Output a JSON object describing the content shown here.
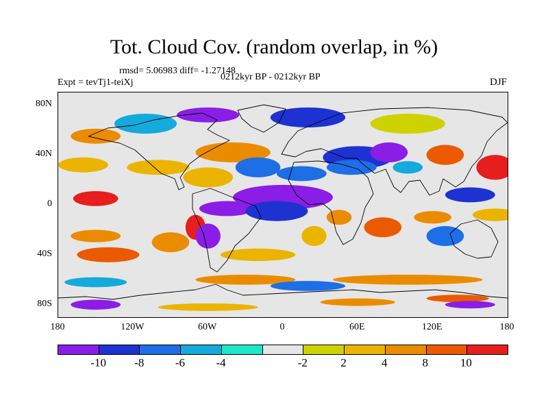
{
  "title": "Tot. Cloud Cov. (random overlap, in %)",
  "stats": "rmsd= 5.06983 diff= -1.27148",
  "experiment": "Expt = tevTj1-teiXj",
  "period": "0212kyr BP - 0212kyr BP",
  "season": "DJF",
  "map": {
    "projection": "cylindrical-equidistant",
    "lon_range": [
      -180,
      180
    ],
    "lat_range": [
      -90,
      90
    ],
    "x_ticks": [
      {
        "lon": -180,
        "label": "180"
      },
      {
        "lon": -120,
        "label": "120W"
      },
      {
        "lon": -60,
        "label": "60W"
      },
      {
        "lon": 0,
        "label": "0"
      },
      {
        "lon": 60,
        "label": "60E"
      },
      {
        "lon": 120,
        "label": "120E"
      },
      {
        "lon": 180,
        "label": "180"
      }
    ],
    "y_ticks": [
      {
        "lat": 80,
        "label": "80N"
      },
      {
        "lat": 40,
        "label": "40N"
      },
      {
        "lat": 0,
        "label": "0"
      },
      {
        "lat": -40,
        "label": "40S"
      },
      {
        "lat": -80,
        "label": "80S"
      }
    ],
    "background_color": "#e6e6e6",
    "coastline_color": "#000000",
    "anomaly_regions": [
      {
        "lon": -150,
        "lat": 5,
        "rlon": 18,
        "rlat": 6,
        "bin": 10
      },
      {
        "lon": -45,
        "lat": -3,
        "rlon": 22,
        "rlat": 6,
        "bin": 0
      },
      {
        "lon": 0,
        "lat": 6,
        "rlon": 40,
        "rlat": 10,
        "bin": 0
      },
      {
        "lon": -5,
        "lat": -5,
        "rlon": 25,
        "rlat": 8,
        "bin": 1
      },
      {
        "lon": -60,
        "lat": 22,
        "rlon": 20,
        "rlat": 8,
        "bin": 7
      },
      {
        "lon": -100,
        "lat": 30,
        "rlon": 25,
        "rlat": 6,
        "bin": 7
      },
      {
        "lon": -40,
        "lat": 42,
        "rlon": 30,
        "rlat": 8,
        "bin": 8
      },
      {
        "lon": -160,
        "lat": 32,
        "rlon": 20,
        "rlat": 6,
        "bin": 7
      },
      {
        "lon": -165,
        "lat": 16,
        "rlon": 15,
        "rlat": 6,
        "bin": 5
      },
      {
        "lon": -20,
        "lat": 30,
        "rlon": 18,
        "rlat": 8,
        "bin": 2
      },
      {
        "lon": 15,
        "lat": 25,
        "rlon": 20,
        "rlat": 6,
        "bin": 2
      },
      {
        "lon": 60,
        "lat": 38,
        "rlon": 28,
        "rlat": 9,
        "bin": 1
      },
      {
        "lon": 85,
        "lat": 42,
        "rlon": 15,
        "rlat": 8,
        "bin": 0
      },
      {
        "lon": 55,
        "lat": 30,
        "rlon": 20,
        "rlat": 6,
        "bin": 2
      },
      {
        "lon": 100,
        "lat": 30,
        "rlon": 12,
        "rlat": 5,
        "bin": 3
      },
      {
        "lon": 130,
        "lat": 40,
        "rlon": 15,
        "rlat": 8,
        "bin": 9
      },
      {
        "lon": 170,
        "lat": 30,
        "rlon": 15,
        "rlat": 10,
        "bin": 10
      },
      {
        "lon": 150,
        "lat": 8,
        "rlon": 20,
        "rlat": 6,
        "bin": 1
      },
      {
        "lon": 170,
        "lat": -8,
        "rlon": 18,
        "rlat": 5,
        "bin": 7
      },
      {
        "lon": 120,
        "lat": -10,
        "rlon": 15,
        "rlat": 5,
        "bin": 8
      },
      {
        "lon": 130,
        "lat": -25,
        "rlon": 15,
        "rlat": 8,
        "bin": 2
      },
      {
        "lon": 80,
        "lat": -18,
        "rlon": 15,
        "rlat": 8,
        "bin": 9
      },
      {
        "lon": 45,
        "lat": -10,
        "rlon": 10,
        "rlat": 6,
        "bin": 8
      },
      {
        "lon": 25,
        "lat": -25,
        "rlon": 10,
        "rlat": 8,
        "bin": 7
      },
      {
        "lon": -70,
        "lat": -18,
        "rlon": 8,
        "rlat": 10,
        "bin": 10
      },
      {
        "lon": -60,
        "lat": -25,
        "rlon": 10,
        "rlat": 10,
        "bin": 0
      },
      {
        "lon": -90,
        "lat": -30,
        "rlon": 15,
        "rlat": 8,
        "bin": 8
      },
      {
        "lon": -150,
        "lat": -25,
        "rlon": 20,
        "rlat": 5,
        "bin": 8
      },
      {
        "lon": -140,
        "lat": -40,
        "rlon": 25,
        "rlat": 6,
        "bin": 9
      },
      {
        "lon": -20,
        "lat": -40,
        "rlon": 30,
        "rlat": 5,
        "bin": 7
      },
      {
        "lon": -60,
        "lat": 72,
        "rlon": 25,
        "rlat": 6,
        "bin": 0
      },
      {
        "lon": -110,
        "lat": 65,
        "rlon": 25,
        "rlat": 8,
        "bin": 3
      },
      {
        "lon": -150,
        "lat": 55,
        "rlon": 20,
        "rlat": 6,
        "bin": 8
      },
      {
        "lon": 20,
        "lat": 70,
        "rlon": 30,
        "rlat": 8,
        "bin": 1
      },
      {
        "lon": 100,
        "lat": 65,
        "rlon": 30,
        "rlat": 8,
        "bin": 6
      },
      {
        "lon": -30,
        "lat": -60,
        "rlon": 40,
        "rlat": 4,
        "bin": 8
      },
      {
        "lon": 100,
        "lat": -60,
        "rlon": 60,
        "rlat": 4,
        "bin": 8
      },
      {
        "lon": 20,
        "lat": -65,
        "rlon": 30,
        "rlat": 4,
        "bin": 2
      },
      {
        "lon": -150,
        "lat": -62,
        "rlon": 25,
        "rlat": 4,
        "bin": 3
      },
      {
        "lon": -150,
        "lat": -80,
        "rlon": 20,
        "rlat": 4,
        "bin": 0
      },
      {
        "lon": 60,
        "lat": -78,
        "rlon": 30,
        "rlat": 3,
        "bin": 8
      },
      {
        "lon": 140,
        "lat": -75,
        "rlon": 25,
        "rlat": 3,
        "bin": 9
      },
      {
        "lon": -60,
        "lat": -82,
        "rlon": 40,
        "rlat": 3,
        "bin": 7
      },
      {
        "lon": 150,
        "lat": -80,
        "rlon": 20,
        "rlat": 3,
        "bin": 0
      }
    ]
  },
  "colorbar": {
    "segment_colors": [
      "#8a1ee6",
      "#1e32d2",
      "#1e6ee6",
      "#14aadc",
      "#1ee6c8",
      "#e6e6e6",
      "#cdd200",
      "#ebb400",
      "#eb8c00",
      "#eb5a00",
      "#e61e1e"
    ],
    "labels": [
      "-10",
      "-8",
      "-6",
      "-4",
      "-2",
      "2",
      "4",
      "8",
      "10"
    ]
  }
}
